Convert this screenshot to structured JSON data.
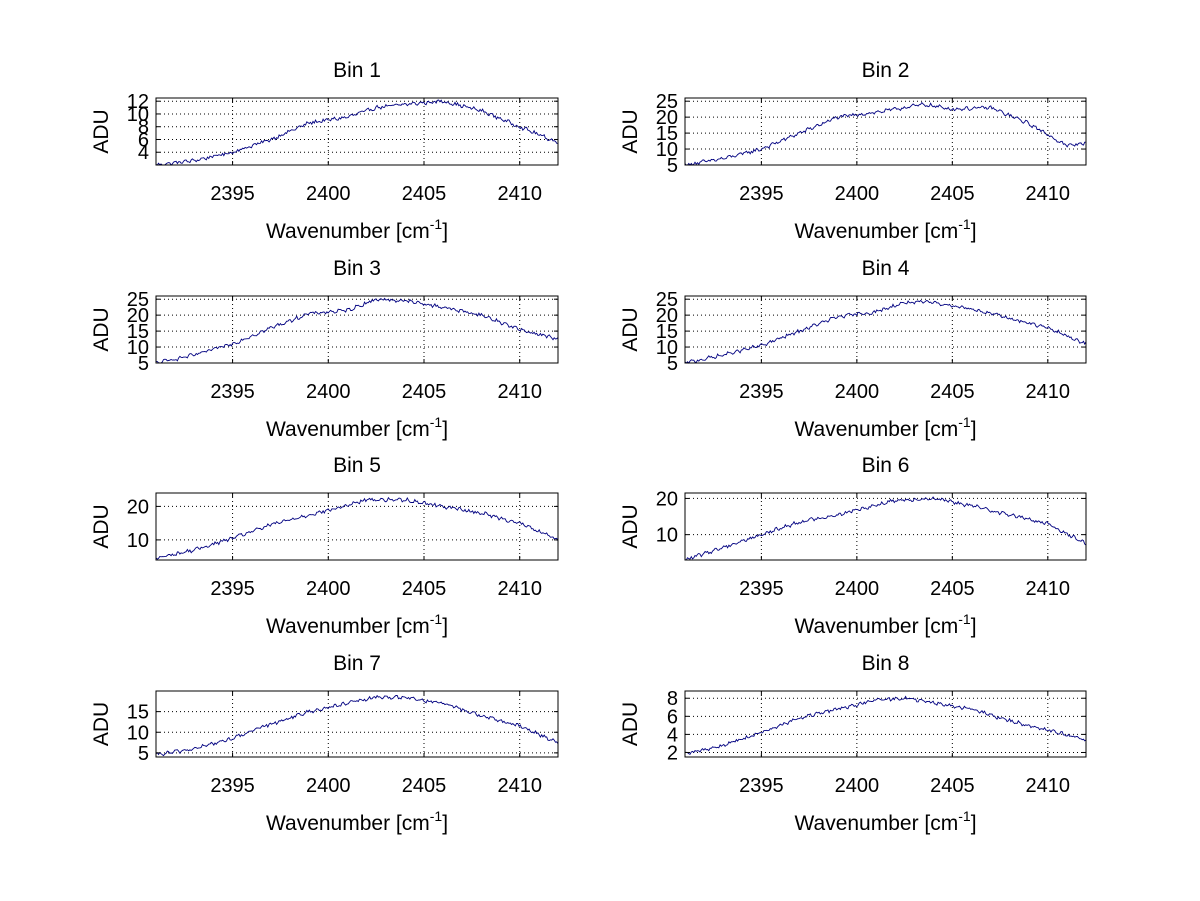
{
  "figure": {
    "background": "#ffffff",
    "line_color": "#000080"
  },
  "chart_data": [
    {
      "type": "line",
      "title": "Bin 1",
      "xlabel": "Wavenumber [cm",
      "xlabel_sup": "-1",
      "xlabel_suffix": "]",
      "ylabel": "ADU",
      "xlim": [
        2391,
        2412
      ],
      "ylim": [
        2,
        12.5
      ],
      "xticks": [
        2395,
        2400,
        2405,
        2410
      ],
      "yticks": [
        4,
        6,
        8,
        10,
        12
      ],
      "grid": true,
      "x": [
        2391,
        2393,
        2395,
        2397,
        2399,
        2401,
        2402.5,
        2404,
        2406,
        2408,
        2410,
        2412
      ],
      "y": [
        2,
        2.7,
        4,
        6,
        8.6,
        9.5,
        11,
        11.5,
        12,
        10.5,
        8,
        5.5
      ]
    },
    {
      "type": "line",
      "title": "Bin 2",
      "xlabel": "Wavenumber [cm",
      "xlabel_sup": "-1",
      "xlabel_suffix": "]",
      "ylabel": "ADU",
      "xlim": [
        2391,
        2412
      ],
      "ylim": [
        5,
        26
      ],
      "xticks": [
        2395,
        2400,
        2405,
        2410
      ],
      "yticks": [
        5,
        10,
        15,
        20,
        25
      ],
      "grid": true,
      "x": [
        2391,
        2393,
        2395,
        2397,
        2399,
        2401,
        2402.5,
        2403.5,
        2405,
        2407,
        2409,
        2411,
        2412
      ],
      "y": [
        5,
        7,
        10,
        15,
        20,
        21.5,
        23,
        24,
        22.5,
        23,
        18,
        11,
        12
      ]
    },
    {
      "type": "line",
      "title": "Bin 3",
      "xlabel": "Wavenumber [cm",
      "xlabel_sup": "-1",
      "xlabel_suffix": "]",
      "ylabel": "ADU",
      "xlim": [
        2391,
        2412
      ],
      "ylim": [
        5,
        26
      ],
      "xticks": [
        2395,
        2400,
        2405,
        2410
      ],
      "yticks": [
        5,
        10,
        15,
        20,
        25
      ],
      "grid": true,
      "x": [
        2391,
        2393,
        2395,
        2397,
        2399,
        2401,
        2402.5,
        2404,
        2406,
        2408,
        2410,
        2412
      ],
      "y": [
        5,
        7.5,
        11,
        16,
        20.5,
        21.5,
        25,
        24.5,
        22.5,
        20,
        15.5,
        12.5
      ]
    },
    {
      "type": "line",
      "title": "Bin 4",
      "xlabel": "Wavenumber [cm",
      "xlabel_sup": "-1",
      "xlabel_suffix": "]",
      "ylabel": "ADU",
      "xlim": [
        2391,
        2412
      ],
      "ylim": [
        5,
        26
      ],
      "xticks": [
        2395,
        2400,
        2405,
        2410
      ],
      "yticks": [
        5,
        10,
        15,
        20,
        25
      ],
      "grid": true,
      "x": [
        2391,
        2393,
        2395,
        2397,
        2399,
        2401,
        2402.5,
        2404,
        2406,
        2408,
        2410,
        2412
      ],
      "y": [
        5,
        7.5,
        10.5,
        15,
        19.5,
        21,
        24,
        24,
        22,
        19,
        16,
        11
      ]
    },
    {
      "type": "line",
      "title": "Bin 5",
      "xlabel": "Wavenumber [cm",
      "xlabel_sup": "-1",
      "xlabel_suffix": "]",
      "ylabel": "ADU",
      "xlim": [
        2391,
        2412
      ],
      "ylim": [
        4,
        24
      ],
      "xticks": [
        2395,
        2400,
        2405,
        2410
      ],
      "yticks": [
        10,
        20
      ],
      "grid": true,
      "x": [
        2391,
        2393,
        2395,
        2397,
        2399,
        2400.5,
        2402,
        2404,
        2406,
        2408,
        2410,
        2412
      ],
      "y": [
        4.5,
        7,
        10.5,
        14.5,
        17.5,
        19.5,
        22,
        22,
        20,
        18,
        15,
        10
      ]
    },
    {
      "type": "line",
      "title": "Bin 6",
      "xlabel": "Wavenumber [cm",
      "xlabel_sup": "-1",
      "xlabel_suffix": "]",
      "ylabel": "ADU",
      "xlim": [
        2391,
        2412
      ],
      "ylim": [
        3,
        21.5
      ],
      "xticks": [
        2395,
        2400,
        2405,
        2410
      ],
      "yticks": [
        10,
        20
      ],
      "grid": true,
      "x": [
        2391,
        2393,
        2395,
        2397,
        2399,
        2400.5,
        2402,
        2404,
        2406,
        2408,
        2410,
        2412
      ],
      "y": [
        3,
        6.5,
        10,
        13.5,
        15.5,
        17.5,
        19.5,
        20,
        18,
        15.5,
        13,
        7.5
      ]
    },
    {
      "type": "line",
      "title": "Bin 7",
      "xlabel": "Wavenumber [cm",
      "xlabel_sup": "-1",
      "xlabel_suffix": "]",
      "ylabel": "ADU",
      "xlim": [
        2391,
        2412
      ],
      "ylim": [
        4,
        20
      ],
      "xticks": [
        2395,
        2400,
        2405,
        2410
      ],
      "yticks": [
        5,
        10,
        15
      ],
      "grid": true,
      "x": [
        2391,
        2393,
        2395,
        2397,
        2399,
        2401,
        2402.5,
        2404,
        2406,
        2408,
        2410,
        2412
      ],
      "y": [
        4.5,
        6,
        8.5,
        12,
        15,
        17,
        18.5,
        18.5,
        17,
        14,
        11.5,
        7.5
      ]
    },
    {
      "type": "line",
      "title": "Bin 8",
      "xlabel": "Wavenumber [cm",
      "xlabel_sup": "-1",
      "xlabel_suffix": "]",
      "ylabel": "ADU",
      "xlim": [
        2391,
        2412
      ],
      "ylim": [
        1.5,
        8.8
      ],
      "xticks": [
        2395,
        2400,
        2405,
        2410
      ],
      "yticks": [
        2,
        4,
        6,
        8
      ],
      "grid": true,
      "x": [
        2391,
        2393,
        2395,
        2397,
        2399,
        2401,
        2402.5,
        2404,
        2406,
        2408,
        2410,
        2412
      ],
      "y": [
        1.8,
        2.8,
        4.2,
        5.8,
        6.8,
        7.8,
        8,
        7.5,
        6.8,
        5.5,
        4.5,
        3.4
      ]
    }
  ]
}
